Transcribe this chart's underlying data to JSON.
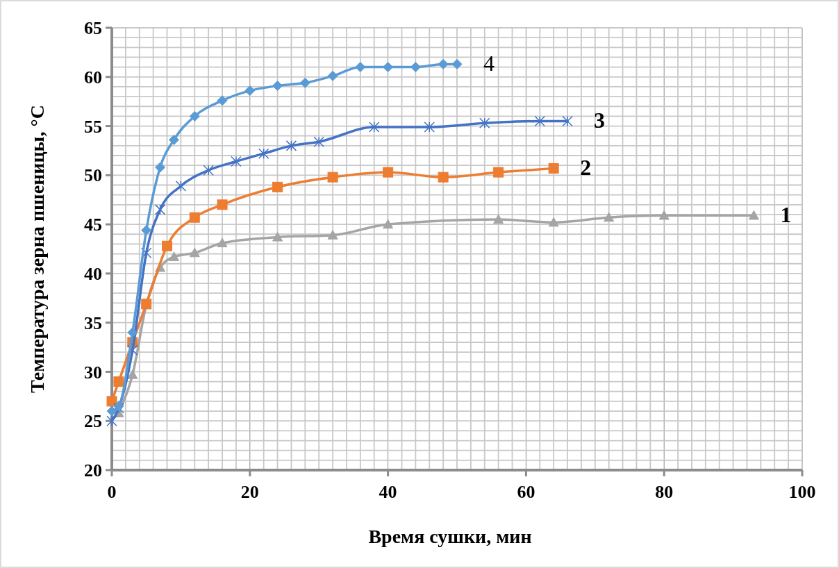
{
  "chart_data": {
    "type": "line",
    "xlabel": "Время сушки, мин",
    "ylabel": "Температура зерна пшеницы, °С",
    "xlim": [
      0,
      100
    ],
    "ylim": [
      20,
      65
    ],
    "xticks": [
      0,
      {
        "value": 2,
        "label": null
      },
      {
        "value": 4,
        "label": null
      },
      {
        "value": 6,
        "label": null
      },
      {
        "value": 8,
        "label": null
      },
      {
        "value": 10,
        "label": null
      },
      {
        "value": 12,
        "label": null
      },
      {
        "value": 14,
        "label": null
      },
      {
        "value": 16,
        "label": null
      },
      {
        "value": 18,
        "label": null
      },
      20,
      {
        "value": 22,
        "label": null
      },
      {
        "value": 24,
        "label": null
      },
      {
        "value": 26,
        "label": null
      },
      {
        "value": 28,
        "label": null
      },
      {
        "value": 30,
        "label": null
      },
      {
        "value": 32,
        "label": null
      },
      {
        "value": 34,
        "label": null
      },
      {
        "value": 36,
        "label": null
      },
      {
        "value": 38,
        "label": null
      },
      40,
      {
        "value": 42,
        "label": null
      },
      {
        "value": 44,
        "label": null
      },
      {
        "value": 46,
        "label": null
      },
      {
        "value": 48,
        "label": null
      },
      {
        "value": 50,
        "label": null
      },
      {
        "value": 52,
        "label": null
      },
      {
        "value": 54,
        "label": null
      },
      {
        "value": 56,
        "label": null
      },
      {
        "value": 58,
        "label": null
      },
      60,
      {
        "value": 62,
        "label": null
      },
      {
        "value": 64,
        "label": null
      },
      {
        "value": 66,
        "label": null
      },
      {
        "value": 68,
        "label": null
      },
      {
        "value": 70,
        "label": null
      },
      {
        "value": 72,
        "label": null
      },
      {
        "value": 74,
        "label": null
      },
      {
        "value": 76,
        "label": null
      },
      {
        "value": 78,
        "label": null
      },
      80,
      {
        "value": 82,
        "label": null
      },
      {
        "value": 84,
        "label": null
      },
      {
        "value": 86,
        "label": null
      },
      {
        "value": 88,
        "label": null
      },
      {
        "value": 90,
        "label": null
      },
      {
        "value": 92,
        "label": null
      },
      {
        "value": 94,
        "label": null
      },
      {
        "value": 96,
        "label": null
      },
      {
        "value": 98,
        "label": null
      },
      100
    ],
    "yticks": [
      20,
      {
        "value": 21,
        "label": null
      },
      {
        "value": 22,
        "label": null
      },
      {
        "value": 23,
        "label": null
      },
      {
        "value": 24,
        "label": null
      },
      25,
      {
        "value": 26,
        "label": null
      },
      {
        "value": 27,
        "label": null
      },
      {
        "value": 28,
        "label": null
      },
      {
        "value": 29,
        "label": null
      },
      30,
      {
        "value": 31,
        "label": null
      },
      {
        "value": 32,
        "label": null
      },
      {
        "value": 33,
        "label": null
      },
      {
        "value": 34,
        "label": null
      },
      35,
      {
        "value": 36,
        "label": null
      },
      {
        "value": 37,
        "label": null
      },
      {
        "value": 38,
        "label": null
      },
      {
        "value": 39,
        "label": null
      },
      40,
      {
        "value": 41,
        "label": null
      },
      {
        "value": 42,
        "label": null
      },
      {
        "value": 43,
        "label": null
      },
      {
        "value": 44,
        "label": null
      },
      45,
      {
        "value": 46,
        "label": null
      },
      {
        "value": 47,
        "label": null
      },
      {
        "value": 48,
        "label": null
      },
      {
        "value": 49,
        "label": null
      },
      50,
      {
        "value": 51,
        "label": null
      },
      {
        "value": 52,
        "label": null
      },
      {
        "value": 53,
        "label": null
      },
      {
        "value": 54,
        "label": null
      },
      55,
      {
        "value": 56,
        "label": null
      },
      {
        "value": 57,
        "label": null
      },
      {
        "value": 58,
        "label": null
      },
      {
        "value": 59,
        "label": null
      },
      60,
      {
        "value": 61,
        "label": null
      },
      {
        "value": 62,
        "label": null
      },
      {
        "value": 63,
        "label": null
      },
      {
        "value": 64,
        "label": null
      },
      65
    ],
    "grid": true,
    "line_style": "solid",
    "series": [
      {
        "name": "1",
        "color": "#a5a5a5",
        "marker": "triangle",
        "x": [
          1,
          3,
          5,
          7,
          9,
          12,
          16,
          24,
          32,
          40,
          56,
          64,
          72,
          80,
          93
        ],
        "values": [
          25.8,
          29.7,
          36.8,
          40.6,
          41.7,
          42.1,
          43.1,
          43.7,
          43.9,
          45,
          45.5,
          45.2,
          45.7,
          45.9,
          45.9
        ]
      },
      {
        "name": "2",
        "color": "#ed7d31",
        "marker": "square",
        "x": [
          0,
          1,
          3,
          5,
          8,
          12,
          16,
          24,
          32,
          40,
          48,
          56,
          64
        ],
        "values": [
          27,
          29,
          33,
          36.9,
          42.8,
          45.7,
          47,
          48.8,
          49.8,
          50.3,
          49.8,
          50.3,
          50.7
        ]
      },
      {
        "name": "3",
        "color": "#4472c4",
        "marker": "cross",
        "x": [
          0,
          1,
          3,
          5,
          7,
          10,
          14,
          18,
          22,
          26,
          30,
          38,
          46,
          54,
          62,
          66
        ],
        "values": [
          25,
          26.3,
          32.2,
          42.1,
          46.5,
          48.9,
          50.5,
          51.4,
          52.2,
          53,
          53.4,
          54.9,
          54.9,
          55.3,
          55.5,
          55.5
        ]
      },
      {
        "name": "4",
        "color": "#5b9bd5",
        "marker": "diamond",
        "x": [
          0,
          1,
          3,
          5,
          7,
          9,
          12,
          16,
          20,
          24,
          28,
          32,
          36,
          40,
          44,
          48,
          50
        ],
        "values": [
          26,
          26.5,
          34,
          44.4,
          50.8,
          53.6,
          56,
          57.6,
          58.6,
          59.1,
          59.4,
          60.1,
          61,
          61,
          61,
          61.3,
          61.3
        ]
      }
    ]
  }
}
